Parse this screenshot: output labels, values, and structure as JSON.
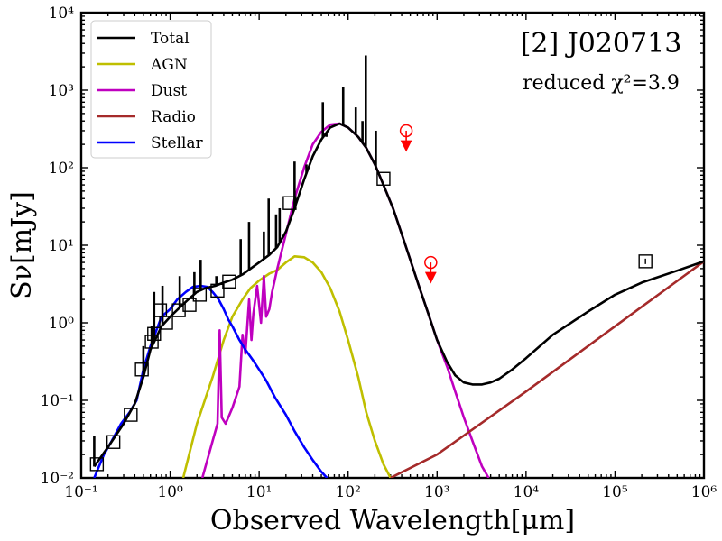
{
  "chart_data": {
    "type": "line",
    "title": "[2] J020713",
    "subtitle": "reduced χ²=3.9",
    "xlabel": "Observed Wavelength[μm]",
    "ylabel": "Sν[mJy]",
    "xscale": "log",
    "yscale": "log",
    "xlim": [
      0.1,
      1000000
    ],
    "ylim": [
      0.01,
      10000
    ],
    "x_tick_labels": [
      "10⁻¹",
      "10⁰",
      "10¹",
      "10²",
      "10³",
      "10⁴",
      "10⁵",
      "10⁶"
    ],
    "y_tick_labels": [
      "10⁻²",
      "10⁻¹",
      "10⁰",
      "10¹",
      "10²",
      "10³",
      "10⁴"
    ],
    "legend_position": "top-left",
    "series": [
      {
        "name": "Total",
        "color": "#000000",
        "x": [
          0.14,
          0.2,
          0.3,
          0.4,
          0.5,
          0.6,
          0.8,
          1.0,
          1.3,
          1.6,
          2.0,
          2.5,
          3.2,
          4.0,
          5.0,
          6.5,
          8.0,
          10,
          13,
          16,
          20,
          25,
          32,
          40,
          50,
          63,
          80,
          100,
          130,
          160,
          200,
          250,
          320,
          400,
          500,
          630,
          800,
          1000,
          1300,
          1600,
          2000,
          2500,
          3200,
          4000,
          5000,
          7000,
          10000,
          20000,
          50000,
          100000,
          200000,
          500000,
          1000000
        ],
        "y": [
          0.014,
          0.025,
          0.05,
          0.09,
          0.2,
          0.45,
          0.9,
          1.2,
          1.6,
          2.0,
          2.5,
          2.8,
          3.0,
          3.3,
          3.6,
          4.2,
          5.0,
          6.0,
          7.5,
          9.5,
          15,
          30,
          70,
          140,
          230,
          330,
          370,
          330,
          250,
          180,
          110,
          60,
          30,
          14,
          6.5,
          2.9,
          1.3,
          0.6,
          0.31,
          0.21,
          0.17,
          0.16,
          0.16,
          0.17,
          0.19,
          0.25,
          0.35,
          0.7,
          1.4,
          2.3,
          3.3,
          4.7,
          6.2
        ]
      },
      {
        "name": "AGN",
        "color": "#bfbf00",
        "x": [
          1.4,
          2.0,
          3.0,
          4.0,
          5.0,
          6.5,
          8.0,
          10,
          13,
          16,
          20,
          25,
          32,
          40,
          50,
          63,
          80,
          100,
          130,
          160,
          200,
          250,
          300
        ],
        "y": [
          0.01,
          0.05,
          0.2,
          0.6,
          1.2,
          2.0,
          2.8,
          3.5,
          4.3,
          4.8,
          6.0,
          7.2,
          7.0,
          6.0,
          4.5,
          2.8,
          1.4,
          0.6,
          0.2,
          0.07,
          0.03,
          0.015,
          0.01
        ]
      },
      {
        "name": "Dust",
        "color": "#bf00bf",
        "x": [
          2.3,
          3.0,
          3.4,
          3.6,
          3.8,
          4.2,
          5.0,
          6.0,
          6.5,
          7.0,
          7.7,
          8.2,
          8.6,
          9.5,
          10.5,
          11.3,
          12.0,
          13.0,
          14.0,
          16,
          20,
          25,
          32,
          40,
          50,
          63,
          80,
          100,
          130,
          160,
          200,
          250,
          320,
          400,
          500,
          630,
          800,
          1000,
          1300,
          1600,
          2000,
          2500,
          3200,
          3800
        ],
        "y": [
          0.01,
          0.03,
          0.05,
          0.8,
          0.06,
          0.05,
          0.08,
          0.15,
          0.7,
          0.4,
          2.0,
          0.6,
          1.3,
          3.0,
          1.0,
          4.0,
          1.2,
          1.5,
          2.5,
          5.0,
          14,
          40,
          100,
          200,
          290,
          360,
          370,
          330,
          250,
          180,
          110,
          60,
          30,
          14,
          6.5,
          2.9,
          1.3,
          0.6,
          0.27,
          0.13,
          0.06,
          0.03,
          0.014,
          0.01
        ]
      },
      {
        "name": "Radio",
        "color": "#a52a2a",
        "x": [
          300,
          1000,
          10000,
          100000,
          1000000
        ],
        "y": [
          0.01,
          0.02,
          0.13,
          0.9,
          6.2
        ]
      },
      {
        "name": "Stellar",
        "color": "#0000ff",
        "x": [
          0.14,
          0.18,
          0.22,
          0.28,
          0.35,
          0.42,
          0.5,
          0.6,
          0.7,
          0.8,
          1.0,
          1.2,
          1.5,
          1.8,
          2.2,
          2.6,
          3.0,
          3.5,
          4.0,
          4.5,
          5.0,
          6.0,
          7.0,
          8.5,
          10,
          12,
          15,
          20,
          25,
          32,
          40,
          50,
          58
        ],
        "y": [
          0.01,
          0.02,
          0.03,
          0.05,
          0.07,
          0.1,
          0.25,
          0.5,
          0.8,
          1.2,
          1.5,
          2.0,
          2.5,
          2.9,
          3.0,
          2.9,
          2.5,
          2.0,
          1.5,
          1.1,
          0.9,
          0.6,
          0.45,
          0.33,
          0.25,
          0.18,
          0.11,
          0.065,
          0.04,
          0.025,
          0.017,
          0.012,
          0.01
        ]
      }
    ],
    "spikes": [
      {
        "x": 0.14,
        "y": 0.035
      },
      {
        "x": 0.5,
        "y": 0.5
      },
      {
        "x": 0.62,
        "y": 0.9
      },
      {
        "x": 0.66,
        "y": 2.5
      },
      {
        "x": 0.82,
        "y": 3.0
      },
      {
        "x": 1.28,
        "y": 4.0
      },
      {
        "x": 1.87,
        "y": 4.5
      },
      {
        "x": 2.2,
        "y": 6.5
      },
      {
        "x": 3.3,
        "y": 4.0
      },
      {
        "x": 6.2,
        "y": 12
      },
      {
        "x": 7.7,
        "y": 20
      },
      {
        "x": 11.3,
        "y": 15
      },
      {
        "x": 12.8,
        "y": 40
      },
      {
        "x": 15.5,
        "y": 25
      },
      {
        "x": 17,
        "y": 30
      },
      {
        "x": 25,
        "y": 120
      },
      {
        "x": 34,
        "y": 110
      },
      {
        "x": 52,
        "y": 700
      },
      {
        "x": 57,
        "y": 250
      },
      {
        "x": 88,
        "y": 1100
      },
      {
        "x": 122,
        "y": 600
      },
      {
        "x": 145,
        "y": 400
      },
      {
        "x": 158,
        "y": 2800
      },
      {
        "x": 205,
        "y": 300
      }
    ],
    "observations": [
      {
        "x": 0.15,
        "y": 0.015
      },
      {
        "x": 0.23,
        "y": 0.029
      },
      {
        "x": 0.36,
        "y": 0.065
      },
      {
        "x": 0.48,
        "y": 0.25
      },
      {
        "x": 0.62,
        "y": 0.57
      },
      {
        "x": 0.66,
        "y": 0.72
      },
      {
        "x": 0.77,
        "y": 1.45
      },
      {
        "x": 0.9,
        "y": 1.0
      },
      {
        "x": 1.25,
        "y": 1.45
      },
      {
        "x": 1.65,
        "y": 1.7
      },
      {
        "x": 2.15,
        "y": 2.3
      },
      {
        "x": 3.4,
        "y": 2.6
      },
      {
        "x": 4.6,
        "y": 3.4
      },
      {
        "x": 22,
        "y": 35
      },
      {
        "x": 250,
        "y": 72
      },
      {
        "x": 220000,
        "y": 6.2
      }
    ],
    "upper_limits": [
      {
        "x": 450,
        "y": 300
      },
      {
        "x": 850,
        "y": 6.0
      }
    ]
  }
}
